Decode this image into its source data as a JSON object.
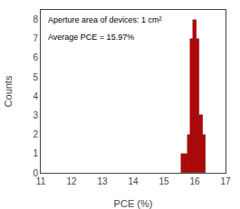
{
  "chart_data": {
    "type": "histogram",
    "xlabel": "PCE (%)",
    "ylabel": "Counts",
    "annotations": [
      "Aperture area of devices: 1 cm²",
      "Average PCE = 15.97%"
    ],
    "bins": [
      15.55,
      15.65,
      15.75,
      15.85,
      15.95,
      16.05,
      16.15,
      16.25,
      16.35
    ],
    "values": [
      1,
      1,
      2,
      7,
      8,
      7,
      3,
      2
    ],
    "color": "#bb0000",
    "xlim": [
      11,
      17
    ],
    "ylim": [
      0,
      8.5
    ],
    "xticks": [
      11,
      12,
      13,
      14,
      15,
      16,
      17
    ],
    "yticks": [
      0,
      1,
      2,
      3,
      4,
      5,
      6,
      7,
      8
    ],
    "grid": false
  }
}
